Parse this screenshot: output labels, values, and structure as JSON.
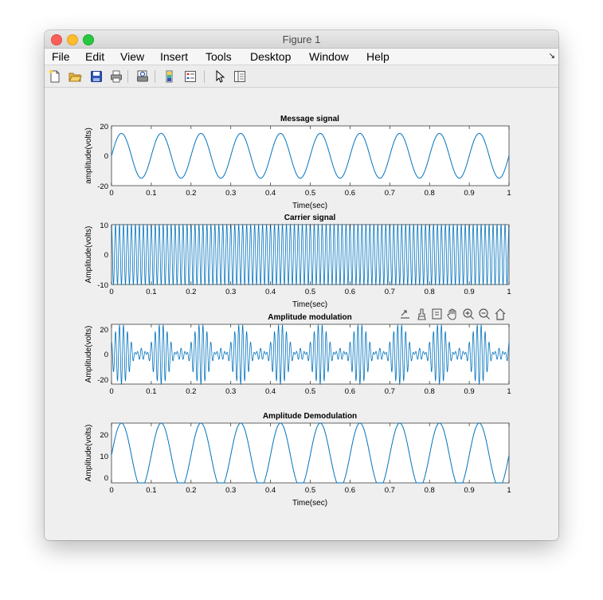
{
  "window": {
    "title": "Figure 1"
  },
  "menubar": {
    "items": [
      "File",
      "Edit",
      "View",
      "Insert",
      "Tools",
      "Desktop",
      "Window",
      "Help"
    ],
    "corner_glyph": "↘"
  },
  "toolbar": {
    "buttons": [
      "new-figure-icon",
      "open-file-icon",
      "save-icon",
      "print-icon",
      "print-preview-icon",
      "colorbar-icon",
      "legend-icon",
      "pointer-icon",
      "property-inspector-icon"
    ]
  },
  "axes_toolbar": {
    "buttons": [
      "export-icon",
      "brush-icon",
      "data-tips-icon",
      "pan-icon",
      "zoom-in-icon",
      "zoom-out-icon",
      "home-icon"
    ]
  },
  "chart_data": [
    {
      "type": "line",
      "title": "Message signal",
      "xlabel": "Time(sec)",
      "ylabel": "amplitude(volts)",
      "xlim": [
        0,
        1
      ],
      "ylim": [
        -20,
        20
      ],
      "xticks": [
        "0",
        "0.1",
        "0.2",
        "0.3",
        "0.4",
        "0.5",
        "0.6",
        "0.7",
        "0.8",
        "0.9",
        "1"
      ],
      "yticks": [
        "20",
        "0",
        "-20"
      ],
      "series": [
        {
          "function": "15*sin(2*pi*10*t)",
          "amplitude": 15,
          "frequency_hz": 10,
          "color": "#0072bd"
        }
      ],
      "grid": false
    },
    {
      "type": "line",
      "title": "Carrier signal",
      "xlabel": "Time(sec)",
      "ylabel": "Amplitude(volts)",
      "xlim": [
        0,
        1
      ],
      "ylim": [
        -10,
        10
      ],
      "xticks": [
        "0",
        "0.1",
        "0.2",
        "0.3",
        "0.4",
        "0.5",
        "0.6",
        "0.7",
        "0.8",
        "0.9",
        "1"
      ],
      "yticks": [
        "10",
        "0",
        "-10"
      ],
      "series": [
        {
          "function": "10*cos(2*pi*100*t)",
          "amplitude": 10,
          "frequency_hz": 100,
          "color": "#0072bd"
        }
      ],
      "grid": false
    },
    {
      "type": "line",
      "title": "Amplitude modulation",
      "xlabel": "",
      "ylabel": "Amplitude(volts)",
      "xlim": [
        0,
        1
      ],
      "ylim": [
        -25,
        25
      ],
      "xticks": [
        "0",
        "0.1",
        "0.2",
        "0.3",
        "0.4",
        "0.5",
        "0.6",
        "0.7",
        "0.8",
        "0.9",
        "1"
      ],
      "yticks": [
        "20",
        "0",
        "-20"
      ],
      "series": [
        {
          "function": "(10+15*sin(2*pi*10*t))*cos(2*pi*100*t)",
          "carrier_amplitude": 10,
          "message_amplitude": 15,
          "message_frequency_hz": 10,
          "carrier_frequency_hz": 100,
          "color": "#0072bd"
        }
      ],
      "grid": false
    },
    {
      "type": "line",
      "title": "Amplitude Demodulation",
      "xlabel": "Time(sec)",
      "ylabel": "Amplitude(volts)",
      "xlim": [
        0,
        1
      ],
      "ylim": [
        -3,
        25
      ],
      "xticks": [
        "0",
        "0.1",
        "0.2",
        "0.3",
        "0.4",
        "0.5",
        "0.6",
        "0.7",
        "0.8",
        "0.9",
        "1"
      ],
      "yticks": [
        "20",
        "10",
        "0"
      ],
      "series": [
        {
          "function": "10+15*sin(2*pi*10*t)",
          "offset": 10,
          "amplitude": 15,
          "frequency_hz": 10,
          "color": "#0072bd"
        }
      ],
      "grid": false
    }
  ]
}
